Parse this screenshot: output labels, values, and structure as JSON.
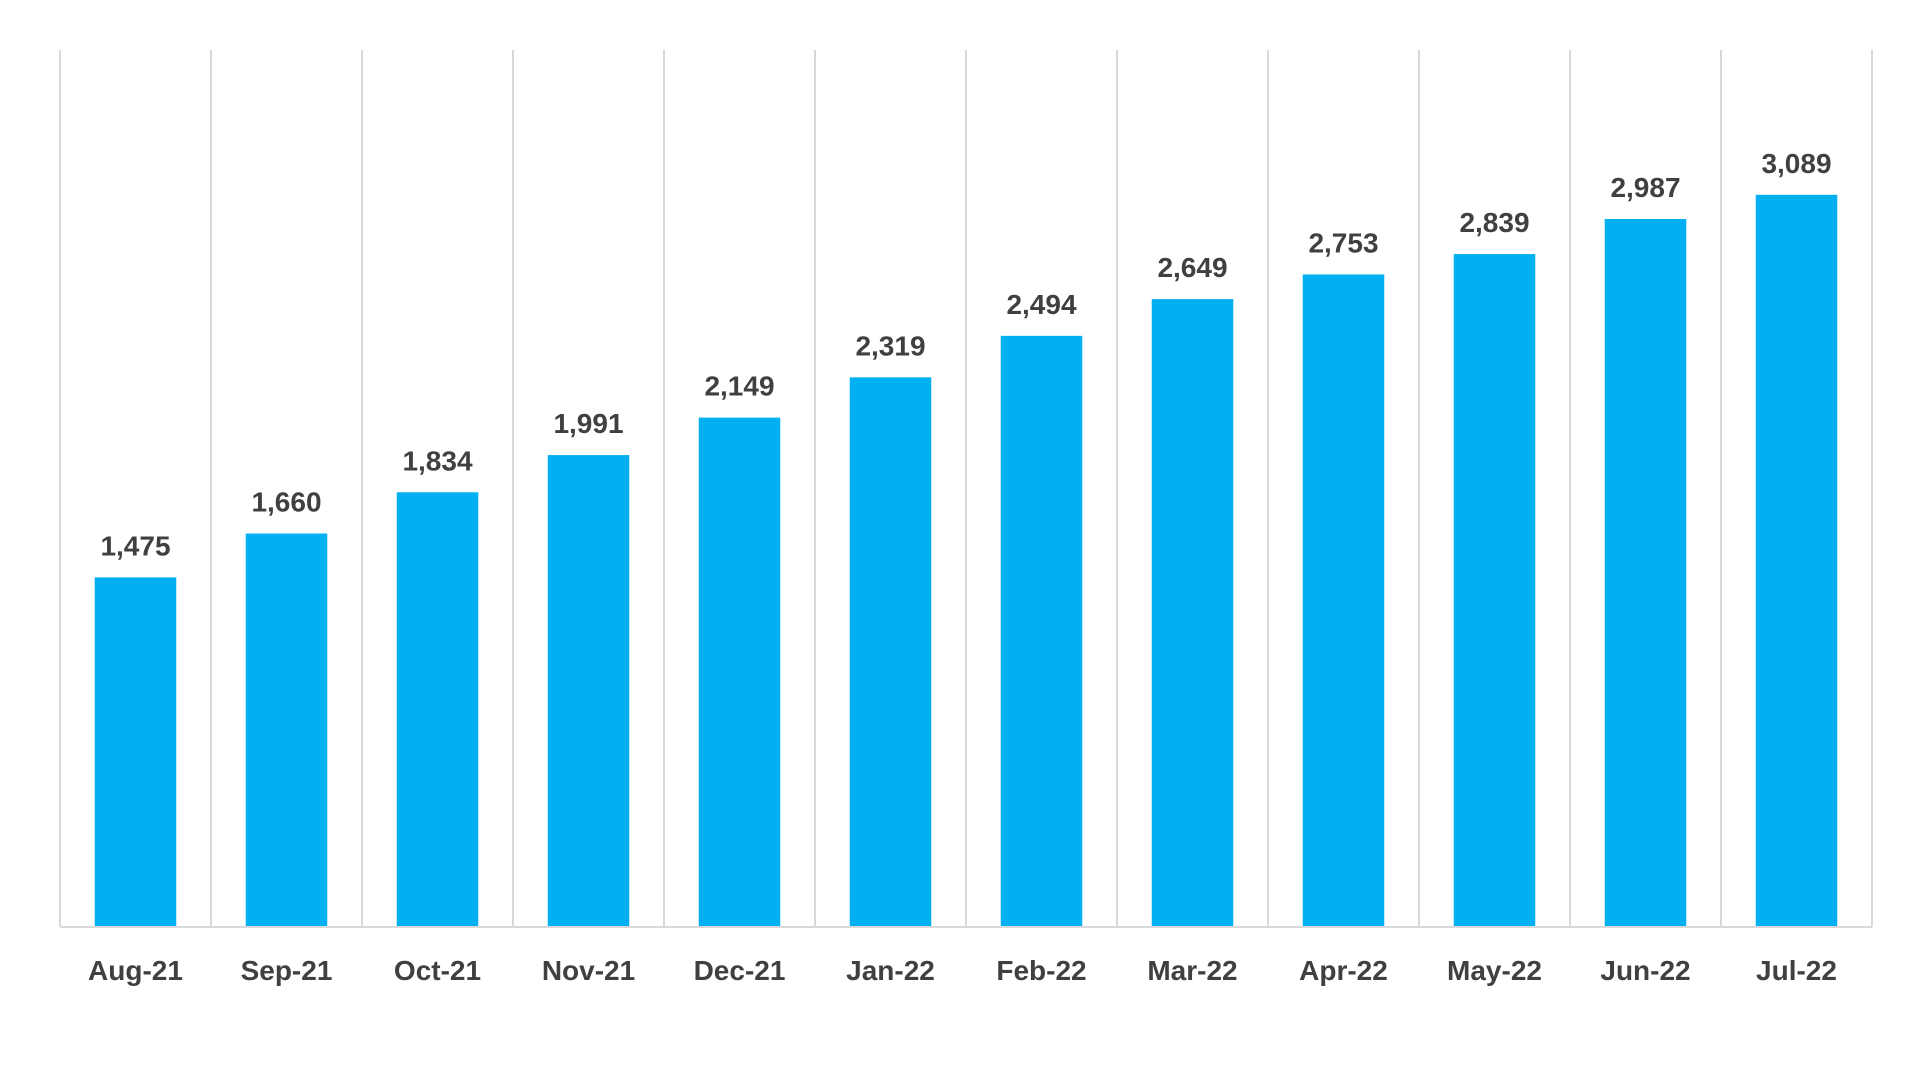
{
  "chart_data": {
    "type": "bar",
    "categories": [
      "Aug-21",
      "Sep-21",
      "Oct-21",
      "Nov-21",
      "Dec-21",
      "Jan-22",
      "Feb-22",
      "Mar-22",
      "Apr-22",
      "May-22",
      "Jun-22",
      "Jul-22"
    ],
    "values": [
      1475,
      1660,
      1834,
      1991,
      2149,
      2319,
      2494,
      2649,
      2753,
      2839,
      2987,
      3089
    ],
    "value_labels": [
      "1,475",
      "1,660",
      "1,834",
      "1,991",
      "2,149",
      "2,319",
      "2,494",
      "2,649",
      "2,753",
      "2,839",
      "2,987",
      "3,089"
    ],
    "title": "",
    "xlabel": "",
    "ylabel": "",
    "ylim": [
      0,
      3700
    ],
    "grid": "vertical",
    "legend": "none",
    "colors": {
      "bar": "#00b0f0",
      "grid": "#d9d9d9",
      "text": "#404040"
    }
  }
}
